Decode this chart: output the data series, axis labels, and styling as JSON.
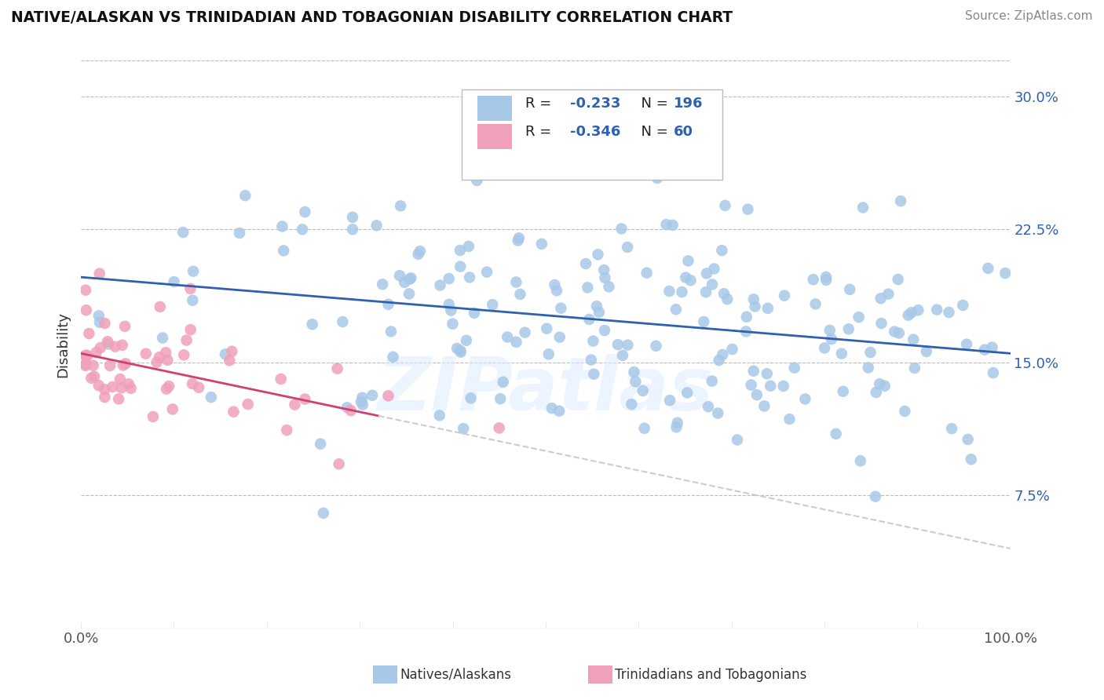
{
  "title": "NATIVE/ALASKAN VS TRINIDADIAN AND TOBAGONIAN DISABILITY CORRELATION CHART",
  "source": "Source: ZipAtlas.com",
  "ylabel": "Disability",
  "xlim": [
    0,
    100
  ],
  "ylim": [
    0,
    32
  ],
  "yticks": [
    7.5,
    15.0,
    22.5,
    30.0
  ],
  "ytick_labels": [
    "7.5%",
    "15.0%",
    "22.5%",
    "30.0%"
  ],
  "xtick_labels": [
    "0.0%",
    "100.0%"
  ],
  "blue_color": "#a8c8e8",
  "pink_color": "#f0a0b8",
  "trend_blue": "#3060b0",
  "trend_pink": "#d04070",
  "r_color": "#3060b0",
  "background": "#ffffff",
  "grid_color": "#bbbbbb",
  "blue_trend_x0": 0,
  "blue_trend_y0": 19.8,
  "blue_trend_x1": 100,
  "blue_trend_y1": 15.5,
  "pink_trend_x0": 0,
  "pink_trend_y0": 15.5,
  "pink_trend_x1": 100,
  "pink_trend_y1": 4.5,
  "pink_solid_end_x": 32,
  "watermark": "ZIPatlas"
}
